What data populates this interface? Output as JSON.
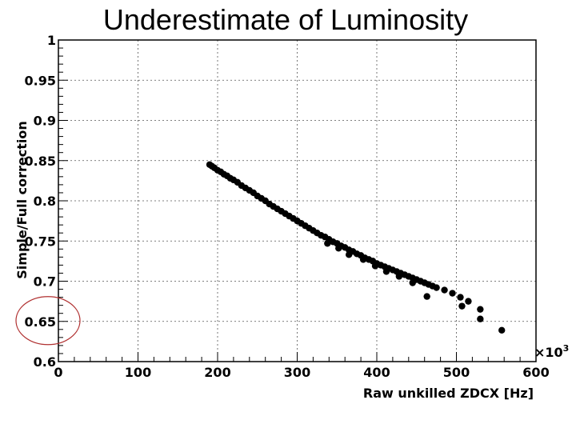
{
  "slide": {
    "title": "Underestimate of Luminosity"
  },
  "chart_data": {
    "type": "scatter",
    "title": "Underestimate of Luminosity",
    "xlabel": "Raw unkilled ZDCX [Hz]",
    "ylabel": "Simple/Full correction",
    "x_multiplier_label": "×10",
    "x_multiplier_exponent": "3",
    "xlim": [
      0,
      600
    ],
    "ylim": [
      0.6,
      1.0
    ],
    "xticks": [
      0,
      100,
      200,
      300,
      400,
      500,
      600
    ],
    "xtick_labels": [
      "0",
      "100",
      "200",
      "300",
      "400",
      "500",
      "600"
    ],
    "yticks": [
      0.6,
      0.65,
      0.7,
      0.75,
      0.8,
      0.85,
      0.9,
      0.95,
      1.0
    ],
    "ytick_labels": [
      "0.6",
      "0.65",
      "0.7",
      "0.75",
      "0.8",
      "0.85",
      "0.9",
      "0.95",
      "1"
    ],
    "grid": true,
    "marker_color": "#000000",
    "annotation": {
      "shape": "ellipse",
      "color": "#b03030",
      "target_y": 0.65
    },
    "points": [
      {
        "x": 190,
        "y": 0.845
      },
      {
        "x": 193,
        "y": 0.843
      },
      {
        "x": 196,
        "y": 0.841
      },
      {
        "x": 200,
        "y": 0.838
      },
      {
        "x": 204,
        "y": 0.836
      },
      {
        "x": 208,
        "y": 0.833
      },
      {
        "x": 212,
        "y": 0.831
      },
      {
        "x": 216,
        "y": 0.828
      },
      {
        "x": 220,
        "y": 0.826
      },
      {
        "x": 225,
        "y": 0.823
      },
      {
        "x": 230,
        "y": 0.819
      },
      {
        "x": 235,
        "y": 0.816
      },
      {
        "x": 240,
        "y": 0.813
      },
      {
        "x": 245,
        "y": 0.81
      },
      {
        "x": 250,
        "y": 0.806
      },
      {
        "x": 255,
        "y": 0.803
      },
      {
        "x": 260,
        "y": 0.8
      },
      {
        "x": 265,
        "y": 0.796
      },
      {
        "x": 270,
        "y": 0.793
      },
      {
        "x": 275,
        "y": 0.79
      },
      {
        "x": 280,
        "y": 0.787
      },
      {
        "x": 285,
        "y": 0.784
      },
      {
        "x": 290,
        "y": 0.781
      },
      {
        "x": 295,
        "y": 0.778
      },
      {
        "x": 300,
        "y": 0.775
      },
      {
        "x": 305,
        "y": 0.772
      },
      {
        "x": 310,
        "y": 0.769
      },
      {
        "x": 315,
        "y": 0.766
      },
      {
        "x": 320,
        "y": 0.763
      },
      {
        "x": 325,
        "y": 0.76
      },
      {
        "x": 330,
        "y": 0.757
      },
      {
        "x": 335,
        "y": 0.755
      },
      {
        "x": 340,
        "y": 0.752
      },
      {
        "x": 345,
        "y": 0.749
      },
      {
        "x": 350,
        "y": 0.747
      },
      {
        "x": 355,
        "y": 0.744
      },
      {
        "x": 360,
        "y": 0.742
      },
      {
        "x": 365,
        "y": 0.739
      },
      {
        "x": 370,
        "y": 0.737
      },
      {
        "x": 375,
        "y": 0.734
      },
      {
        "x": 380,
        "y": 0.732
      },
      {
        "x": 385,
        "y": 0.729
      },
      {
        "x": 390,
        "y": 0.727
      },
      {
        "x": 395,
        "y": 0.725
      },
      {
        "x": 400,
        "y": 0.722
      },
      {
        "x": 405,
        "y": 0.72
      },
      {
        "x": 410,
        "y": 0.718
      },
      {
        "x": 415,
        "y": 0.716
      },
      {
        "x": 420,
        "y": 0.714
      },
      {
        "x": 425,
        "y": 0.712
      },
      {
        "x": 430,
        "y": 0.71
      },
      {
        "x": 435,
        "y": 0.708
      },
      {
        "x": 440,
        "y": 0.706
      },
      {
        "x": 445,
        "y": 0.704
      },
      {
        "x": 450,
        "y": 0.702
      },
      {
        "x": 455,
        "y": 0.7
      },
      {
        "x": 460,
        "y": 0.698
      },
      {
        "x": 465,
        "y": 0.696
      },
      {
        "x": 470,
        "y": 0.694
      },
      {
        "x": 475,
        "y": 0.692
      },
      {
        "x": 485,
        "y": 0.689
      },
      {
        "x": 495,
        "y": 0.685
      },
      {
        "x": 505,
        "y": 0.68
      },
      {
        "x": 515,
        "y": 0.675
      },
      {
        "x": 530,
        "y": 0.665
      },
      {
        "x": 557,
        "y": 0.639
      },
      {
        "x": 338,
        "y": 0.747
      },
      {
        "x": 352,
        "y": 0.741
      },
      {
        "x": 365,
        "y": 0.733
      },
      {
        "x": 383,
        "y": 0.727
      },
      {
        "x": 398,
        "y": 0.719
      },
      {
        "x": 412,
        "y": 0.712
      },
      {
        "x": 428,
        "y": 0.706
      },
      {
        "x": 445,
        "y": 0.698
      },
      {
        "x": 463,
        "y": 0.681
      },
      {
        "x": 507,
        "y": 0.669
      },
      {
        "x": 530,
        "y": 0.653
      }
    ]
  }
}
